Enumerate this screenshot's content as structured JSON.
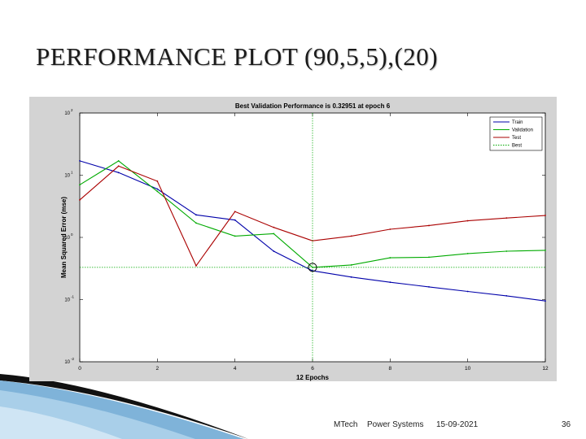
{
  "slide": {
    "title": "PERFORMANCE  PLOT (90,5,5),(20)",
    "footer_course": "MTech",
    "footer_dept": "Power Systems",
    "footer_date": "15-09-2021",
    "page_number": "36"
  },
  "chart_data": {
    "type": "line",
    "title": "Best Validation Performance is 0.32951 at epoch 6",
    "xlabel": "12 Epochs",
    "ylabel": "Mean Squared Error  (mse)",
    "xlim": [
      0,
      12
    ],
    "ylim": [
      0.01,
      100
    ],
    "yscale": "log",
    "x_ticks": [
      "0",
      "2",
      "4",
      "6",
      "8",
      "10",
      "12"
    ],
    "y_tick_bases": [
      "10",
      "10",
      "10",
      "10",
      "10"
    ],
    "y_tick_exponents": [
      "-2",
      "-1",
      "0",
      "1",
      "2"
    ],
    "grid": false,
    "legend_position": "top-right",
    "x": [
      0,
      1,
      2,
      3,
      4,
      5,
      6,
      7,
      8,
      9,
      10,
      11,
      12
    ],
    "series": [
      {
        "name": "Train",
        "color": "#0000aa",
        "values": [
          17,
          11,
          6.0,
          2.3,
          1.9,
          0.6,
          0.29,
          0.23,
          0.19,
          0.16,
          0.135,
          0.115,
          0.095
        ]
      },
      {
        "name": "Validation",
        "color": "#00aa00",
        "values": [
          7,
          17,
          5.5,
          1.7,
          1.05,
          1.15,
          0.32951,
          0.36,
          0.47,
          0.48,
          0.55,
          0.6,
          0.62
        ]
      },
      {
        "name": "Test",
        "color": "#aa0000",
        "values": [
          4,
          14,
          8.0,
          0.35,
          2.6,
          1.45,
          0.88,
          1.05,
          1.35,
          1.55,
          1.85,
          2.05,
          2.25
        ]
      }
    ],
    "best": {
      "name": "Best",
      "x": 6,
      "y": 0.32951,
      "color": "#000000"
    }
  }
}
